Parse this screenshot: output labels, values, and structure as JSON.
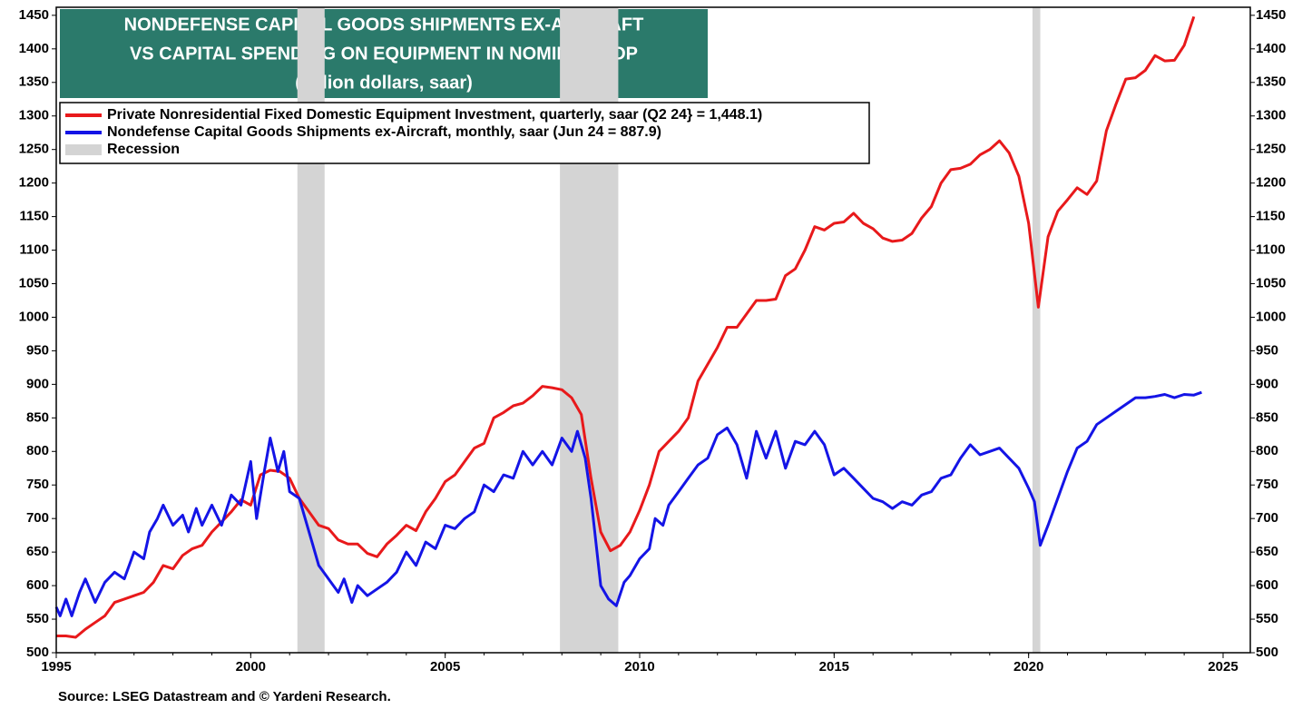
{
  "chart_data": {
    "type": "line",
    "title": [
      "NONDEFENSE CAPITAL GOODS SHIPMENTS EX-AIRCRAFT",
      "VS CAPITAL SPENDING ON EQUIPMENT IN NOMINAL GDP"
    ],
    "subtitle": "(billion dollars, saar)",
    "source": "Source: LSEG Datastream and © Yardeni Research.",
    "recession_label": "Recession",
    "recession_color": "#d4d4d4",
    "recessions": [
      {
        "start": 2001.2,
        "end": 2001.9
      },
      {
        "start": 2007.95,
        "end": 2009.45
      },
      {
        "start": 2020.1,
        "end": 2020.3
      }
    ],
    "xlim": [
      1995,
      2025.7
    ],
    "xticks": [
      1995,
      2000,
      2005,
      2010,
      2015,
      2020,
      2025
    ],
    "ylim": [
      500,
      1462
    ],
    "yticks": [
      500,
      550,
      600,
      650,
      700,
      750,
      800,
      850,
      900,
      950,
      1000,
      1050,
      1100,
      1150,
      1200,
      1250,
      1300,
      1350,
      1400,
      1450
    ],
    "y2lim": [
      500,
      1462
    ],
    "y2ticks": [
      500,
      550,
      600,
      650,
      700,
      750,
      800,
      850,
      900,
      950,
      1000,
      1050,
      1100,
      1150,
      1200,
      1250,
      1300,
      1350,
      1400,
      1450
    ],
    "series": [
      {
        "name": "Private Nonresidential Fixed Domestic Equipment Investment, quarterly, saar (Q2 24} = 1,448.1)",
        "color": "#e8191b",
        "x": [
          1995.0,
          1995.25,
          1995.5,
          1995.75,
          1996.0,
          1996.25,
          1996.5,
          1996.75,
          1997.0,
          1997.25,
          1997.5,
          1997.75,
          1998.0,
          1998.25,
          1998.5,
          1998.75,
          1999.0,
          1999.25,
          1999.5,
          1999.75,
          2000.0,
          2000.25,
          2000.5,
          2000.75,
          2001.0,
          2001.25,
          2001.5,
          2001.75,
          2002.0,
          2002.25,
          2002.5,
          2002.75,
          2003.0,
          2003.25,
          2003.5,
          2003.75,
          2004.0,
          2004.25,
          2004.5,
          2004.75,
          2005.0,
          2005.25,
          2005.5,
          2005.75,
          2006.0,
          2006.25,
          2006.5,
          2006.75,
          2007.0,
          2007.25,
          2007.5,
          2007.75,
          2008.0,
          2008.25,
          2008.5,
          2008.75,
          2009.0,
          2009.25,
          2009.5,
          2009.75,
          2010.0,
          2010.25,
          2010.5,
          2010.75,
          2011.0,
          2011.25,
          2011.5,
          2011.75,
          2012.0,
          2012.25,
          2012.5,
          2012.75,
          2013.0,
          2013.25,
          2013.5,
          2013.75,
          2014.0,
          2014.25,
          2014.5,
          2014.75,
          2015.0,
          2015.25,
          2015.5,
          2015.75,
          2016.0,
          2016.25,
          2016.5,
          2016.75,
          2017.0,
          2017.25,
          2017.5,
          2017.75,
          2018.0,
          2018.25,
          2018.5,
          2018.75,
          2019.0,
          2019.25,
          2019.5,
          2019.75,
          2020.0,
          2020.25,
          2020.5,
          2020.75,
          2021.0,
          2021.25,
          2021.5,
          2021.75,
          2022.0,
          2022.25,
          2022.5,
          2022.75,
          2023.0,
          2023.25,
          2023.5,
          2023.75,
          2024.0,
          2024.25
        ],
        "values": [
          525,
          525,
          523,
          535,
          545,
          555,
          575,
          580,
          585,
          590,
          605,
          630,
          625,
          645,
          655,
          660,
          680,
          695,
          710,
          728,
          720,
          765,
          772,
          770,
          760,
          730,
          710,
          690,
          685,
          668,
          662,
          662,
          648,
          643,
          662,
          675,
          690,
          682,
          710,
          730,
          755,
          765,
          785,
          805,
          812,
          850,
          858,
          868,
          872,
          883,
          897,
          895,
          892,
          880,
          855,
          760,
          680,
          652,
          660,
          680,
          712,
          750,
          800,
          815,
          830,
          850,
          905,
          930,
          955,
          985,
          985,
          1005,
          1025,
          1025,
          1027,
          1062,
          1072,
          1100,
          1135,
          1130,
          1140,
          1142,
          1155,
          1140,
          1132,
          1118,
          1113,
          1115,
          1125,
          1148,
          1165,
          1200,
          1220,
          1222,
          1228,
          1242,
          1250,
          1263,
          1245,
          1210,
          1140,
          1015,
          1120,
          1158,
          1175,
          1193,
          1183,
          1203,
          1278,
          1318,
          1355,
          1357,
          1368,
          1390,
          1382,
          1383,
          1405,
          1448
        ]
      },
      {
        "name": "Nondefense Capital Goods Shipments ex-Aircraft, monthly, saar  (Jun 24 = 887.9)",
        "color": "#1414e6",
        "x": [
          1995.0,
          1995.1,
          1995.25,
          1995.4,
          1995.6,
          1995.75,
          1996.0,
          1996.25,
          1996.5,
          1996.75,
          1997.0,
          1997.25,
          1997.4,
          1997.6,
          1997.75,
          1998.0,
          1998.25,
          1998.4,
          1998.6,
          1998.75,
          1999.0,
          1999.25,
          1999.5,
          1999.75,
          2000.0,
          2000.15,
          2000.35,
          2000.5,
          2000.7,
          2000.85,
          2001.0,
          2001.25,
          2001.4,
          2001.6,
          2001.75,
          2002.0,
          2002.25,
          2002.4,
          2002.6,
          2002.75,
          2003.0,
          2003.25,
          2003.5,
          2003.75,
          2004.0,
          2004.25,
          2004.5,
          2004.75,
          2005.0,
          2005.25,
          2005.5,
          2005.75,
          2006.0,
          2006.25,
          2006.5,
          2006.75,
          2007.0,
          2007.25,
          2007.5,
          2007.75,
          2008.0,
          2008.25,
          2008.4,
          2008.6,
          2008.75,
          2009.0,
          2009.2,
          2009.4,
          2009.6,
          2009.75,
          2010.0,
          2010.25,
          2010.4,
          2010.6,
          2010.75,
          2011.0,
          2011.25,
          2011.5,
          2011.75,
          2012.0,
          2012.25,
          2012.5,
          2012.75,
          2013.0,
          2013.25,
          2013.5,
          2013.75,
          2014.0,
          2014.25,
          2014.5,
          2014.75,
          2015.0,
          2015.25,
          2015.5,
          2015.75,
          2016.0,
          2016.25,
          2016.5,
          2016.75,
          2017.0,
          2017.25,
          2017.5,
          2017.75,
          2018.0,
          2018.25,
          2018.5,
          2018.75,
          2019.0,
          2019.25,
          2019.5,
          2019.75,
          2020.0,
          2020.15,
          2020.3,
          2020.5,
          2020.75,
          2021.0,
          2021.25,
          2021.5,
          2021.75,
          2022.0,
          2022.25,
          2022.5,
          2022.75,
          2023.0,
          2023.25,
          2023.5,
          2023.75,
          2024.0,
          2024.25,
          2024.45
        ],
        "values": [
          568,
          555,
          580,
          555,
          590,
          610,
          575,
          605,
          620,
          610,
          650,
          640,
          680,
          700,
          720,
          690,
          705,
          680,
          715,
          690,
          720,
          690,
          735,
          720,
          785,
          700,
          770,
          820,
          770,
          800,
          740,
          730,
          700,
          660,
          630,
          610,
          590,
          610,
          575,
          600,
          585,
          595,
          605,
          620,
          650,
          630,
          665,
          655,
          690,
          685,
          700,
          710,
          750,
          740,
          765,
          760,
          800,
          780,
          800,
          780,
          820,
          800,
          830,
          790,
          730,
          600,
          580,
          570,
          605,
          615,
          640,
          655,
          700,
          690,
          720,
          740,
          760,
          780,
          790,
          825,
          835,
          810,
          760,
          830,
          790,
          830,
          775,
          815,
          810,
          830,
          810,
          765,
          775,
          760,
          745,
          730,
          725,
          715,
          725,
          720,
          735,
          740,
          760,
          765,
          790,
          810,
          795,
          800,
          805,
          790,
          775,
          745,
          725,
          660,
          690,
          730,
          770,
          805,
          815,
          840,
          850,
          860,
          870,
          880,
          880,
          882,
          885,
          880,
          885,
          884,
          888
        ]
      }
    ]
  }
}
